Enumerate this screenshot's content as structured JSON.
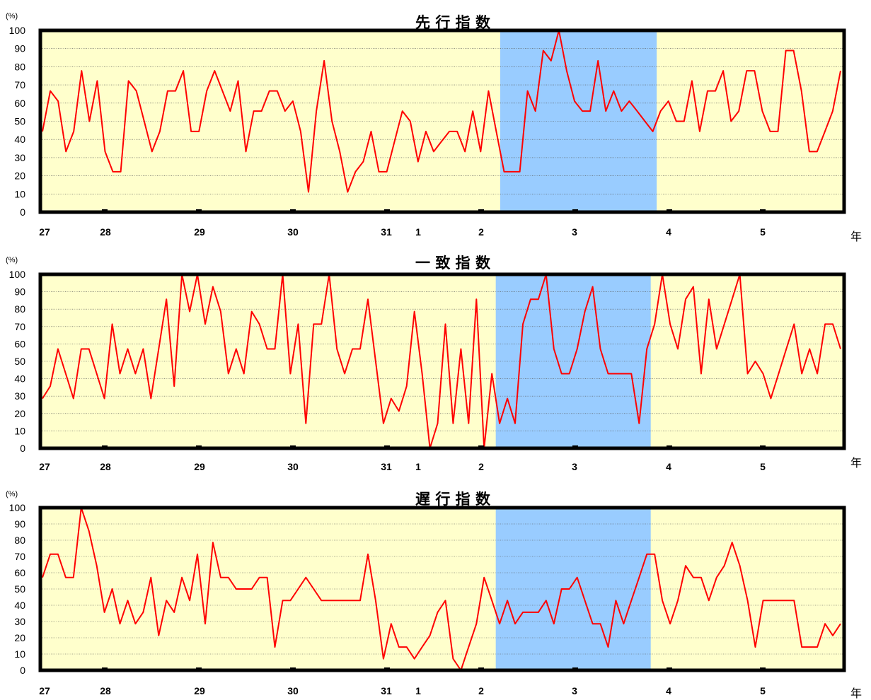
{
  "chart_data": [
    {
      "type": "line",
      "title": "先 行 指 数",
      "unit": "(%)",
      "year_suffix": "年",
      "ylim": [
        0,
        100
      ],
      "yticks": [
        0,
        10,
        20,
        30,
        40,
        50,
        60,
        70,
        80,
        90,
        100
      ],
      "grid": true,
      "x_labels": [
        "27",
        "28",
        "29",
        "30",
        "31",
        "1",
        "2",
        "3",
        "4",
        "5"
      ],
      "shaded_region": {
        "from_month": 59,
        "to_month": 78
      },
      "colors": {
        "background": "#ffffcc",
        "shaded": "#99ccff",
        "line": "#ff0000",
        "border": "#000000"
      },
      "values": [
        44.4,
        66.7,
        61.1,
        33.3,
        44.4,
        77.8,
        50,
        72.2,
        33.3,
        22.2,
        22.2,
        72.2,
        66.7,
        50,
        33.3,
        44.4,
        66.7,
        66.7,
        77.8,
        44.4,
        44.4,
        66.7,
        77.8,
        66.7,
        55.6,
        72.2,
        33.3,
        55.6,
        55.6,
        66.7,
        66.7,
        55.6,
        61.1,
        44.4,
        11.1,
        55.6,
        83.3,
        50,
        33.3,
        11.1,
        22.2,
        27.8,
        44.4,
        22.2,
        22.2,
        38.9,
        55.6,
        50,
        27.8,
        44.4,
        33.3,
        38.9,
        44.4,
        44.4,
        33.3,
        55.6,
        33.3,
        66.7,
        44.4,
        22.2,
        22.2,
        22.2,
        66.7,
        55.6,
        88.9,
        83.3,
        100,
        77.8,
        61.1,
        55.6,
        55.6,
        83.3,
        55.6,
        66.7,
        55.6,
        61.1,
        55.6,
        50,
        44.4,
        55.6,
        61.1,
        50,
        50,
        72.2,
        44.4,
        66.7,
        66.7,
        77.8,
        50,
        55.6,
        77.8,
        77.8,
        55.6,
        44.4,
        44.4,
        88.9,
        88.9,
        66.7,
        33.3,
        33.3,
        44.4,
        55.6,
        77.8
      ]
    },
    {
      "type": "line",
      "title": "一 致 指 数",
      "unit": "(%)",
      "year_suffix": "年",
      "ylim": [
        0,
        100
      ],
      "yticks": [
        0,
        10,
        20,
        30,
        40,
        50,
        60,
        70,
        80,
        90,
        100
      ],
      "grid": true,
      "x_labels": [
        "27",
        "28",
        "29",
        "30",
        "31",
        "1",
        "2",
        "3",
        "4",
        "5"
      ],
      "shaded_region": {
        "from_month": 59,
        "to_month": 78
      },
      "colors": {
        "background": "#ffffcc",
        "shaded": "#99ccff",
        "line": "#ff0000",
        "border": "#000000"
      },
      "values": [
        28.6,
        35.7,
        57.1,
        42.9,
        28.6,
        57.1,
        57.1,
        42.9,
        28.6,
        71.4,
        42.9,
        57.1,
        42.9,
        57.1,
        28.6,
        57.1,
        85.7,
        35.7,
        100,
        78.6,
        100,
        71.4,
        92.9,
        78.6,
        42.9,
        57.1,
        42.9,
        78.6,
        71.4,
        57.1,
        57.1,
        100,
        42.9,
        71.4,
        14.3,
        71.4,
        71.4,
        100,
        57.1,
        42.9,
        57.1,
        57.1,
        85.7,
        50,
        14.3,
        28.6,
        21.4,
        35.7,
        78.6,
        42.9,
        0,
        14.3,
        71.4,
        14.3,
        57.1,
        14.3,
        85.7,
        0,
        42.9,
        14.3,
        28.6,
        14.3,
        71.4,
        85.7,
        85.7,
        100,
        57.1,
        42.9,
        42.9,
        57.1,
        78.6,
        92.9,
        57.1,
        42.9,
        42.9,
        42.9,
        42.9,
        14.3,
        57.1,
        71.4,
        100,
        71.4,
        57.1,
        85.7,
        92.9,
        42.9,
        85.7,
        57.1,
        71.4,
        85.7,
        100,
        42.9,
        50,
        42.9,
        28.6,
        42.9,
        57.1,
        71.4,
        42.9,
        57.1,
        42.9,
        71.4,
        71.4,
        57.1
      ]
    },
    {
      "type": "line",
      "title": "遅 行 指 数",
      "unit": "(%)",
      "year_suffix": "年",
      "ylim": [
        0,
        100
      ],
      "yticks": [
        0,
        10,
        20,
        30,
        40,
        50,
        60,
        70,
        80,
        90,
        100
      ],
      "grid": true,
      "x_labels": [
        "27",
        "28",
        "29",
        "30",
        "31",
        "1",
        "2",
        "3",
        "4",
        "5"
      ],
      "shaded_region": {
        "from_month": 59,
        "to_month": 78
      },
      "colors": {
        "background": "#ffffcc",
        "shaded": "#99ccff",
        "line": "#ff0000",
        "border": "#000000"
      },
      "values": [
        57.1,
        71.4,
        71.4,
        57.1,
        57.1,
        100,
        85.7,
        64.3,
        35.7,
        50,
        28.6,
        42.9,
        28.6,
        35.7,
        57.1,
        21.4,
        42.9,
        35.7,
        57.1,
        42.9,
        71.4,
        28.6,
        78.6,
        57.1,
        57.1,
        50,
        50,
        50,
        57.1,
        57.1,
        14.3,
        42.9,
        42.9,
        50,
        57.1,
        50,
        42.9,
        42.9,
        42.9,
        42.9,
        42.9,
        42.9,
        71.4,
        42.9,
        7.1,
        28.6,
        14.3,
        14.3,
        7.1,
        14.3,
        21.4,
        35.7,
        42.9,
        7.1,
        0,
        14.3,
        28.6,
        57.1,
        42.9,
        28.6,
        42.9,
        28.6,
        35.7,
        35.7,
        35.7,
        42.9,
        28.6,
        50,
        50,
        57.1,
        42.9,
        28.6,
        28.6,
        14.3,
        42.9,
        28.6,
        42.9,
        57.1,
        71.4,
        71.4,
        42.9,
        28.6,
        42.9,
        64.3,
        57.1,
        57.1,
        42.9,
        57.1,
        64.3,
        78.6,
        64.3,
        42.9,
        14.3,
        42.9,
        42.9,
        42.9,
        42.9,
        42.9,
        14.3,
        14.3,
        14.3,
        28.6,
        21.4,
        28.6
      ]
    }
  ]
}
